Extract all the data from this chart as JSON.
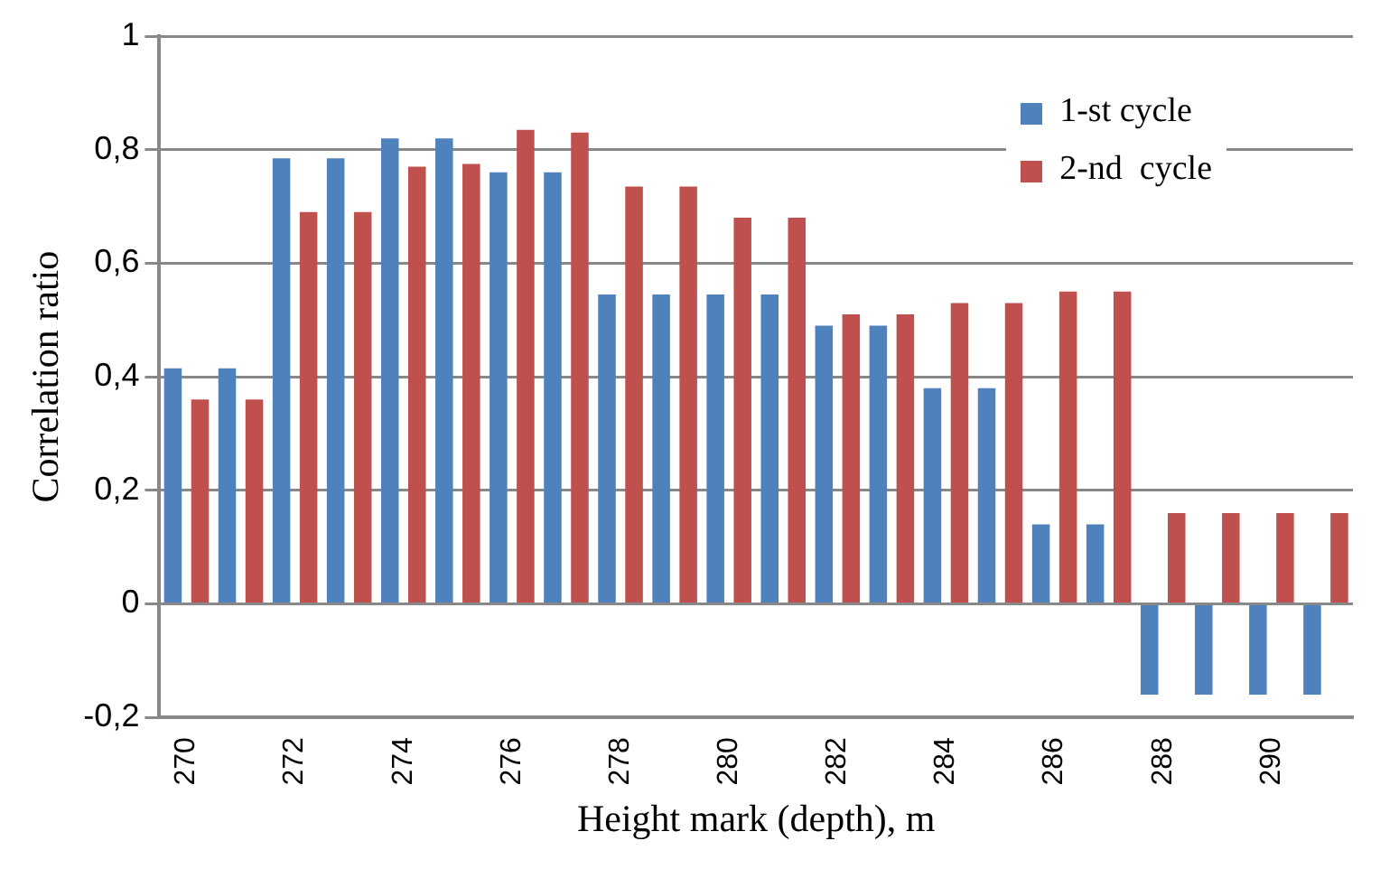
{
  "chart_data": {
    "type": "bar",
    "xlabel": "Height mark (depth), m",
    "ylabel": "Correlation ratio",
    "categories": [
      "270",
      null,
      "272",
      null,
      "274",
      null,
      "276",
      null,
      "278",
      null,
      "280",
      null,
      "282",
      null,
      "284",
      null,
      "286",
      null,
      "288",
      null,
      "290",
      null
    ],
    "series": [
      {
        "name": "1-st cycle",
        "color": "#4f81bd",
        "values": [
          0.415,
          0.415,
          0.785,
          0.785,
          0.82,
          0.82,
          0.76,
          0.76,
          0.545,
          0.545,
          0.545,
          0.545,
          0.49,
          0.49,
          0.38,
          0.38,
          0.14,
          0.14,
          -0.16,
          -0.16,
          -0.16,
          -0.16
        ]
      },
      {
        "name": "2-nd  cycle",
        "color": "#c0504d",
        "values": [
          0.36,
          0.36,
          0.69,
          0.69,
          0.77,
          0.775,
          0.835,
          0.83,
          0.735,
          0.735,
          0.68,
          0.68,
          0.51,
          0.51,
          0.53,
          0.53,
          0.55,
          0.55,
          0.16,
          0.16,
          0.16,
          0.16
        ]
      }
    ],
    "ylim": [
      -0.2,
      1
    ],
    "yticks": [
      {
        "value": -0.2,
        "label": "-0,2"
      },
      0,
      {
        "value": 0.2,
        "label": "0,2"
      },
      {
        "value": 0.4,
        "label": "0,4"
      },
      {
        "value": 0.6,
        "label": "0,6"
      },
      {
        "value": 0.8,
        "label": "0,8"
      },
      1
    ],
    "grid": "y",
    "legend": "top right"
  }
}
